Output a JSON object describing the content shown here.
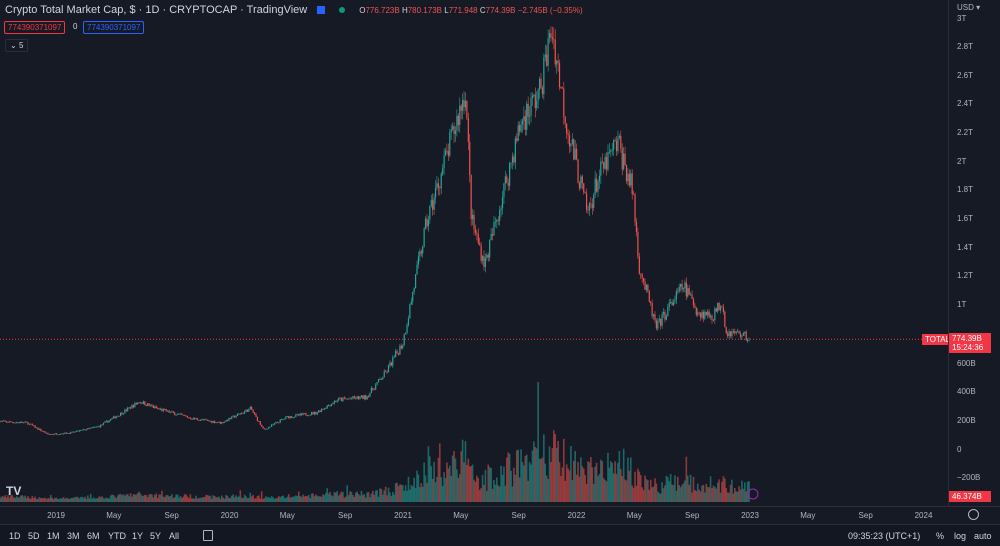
{
  "header": {
    "title": "Crypto Total Market Cap, $ · 1D · CRYPTOCAP · TradingView",
    "open_label": "O",
    "open": "776.723B",
    "high_label": "H",
    "high": "780.173B",
    "low_label": "L",
    "low": "771.948",
    "close_label": "C",
    "close": "774.39B",
    "change": "−2.745B (−0.35%)",
    "sell_value": "774390371097",
    "spread": "0",
    "buy_value": "774390371097",
    "indicators_toggle": "5"
  },
  "price_axis": {
    "currency": "USD",
    "ticks": [
      "3T",
      "2.8T",
      "2.6T",
      "2.4T",
      "2.2T",
      "2T",
      "1.8T",
      "1.6T",
      "1.4T",
      "1.2T",
      "1T",
      "600B",
      "400B",
      "200B",
      "0",
      "−200B"
    ],
    "last_price": "774.39B",
    "countdown": "15:24:36",
    "series_tag": "TOTAL",
    "volume_tag": "46.374B"
  },
  "time_axis": {
    "ticks": [
      "2019",
      "May",
      "Sep",
      "2020",
      "May",
      "Sep",
      "2021",
      "May",
      "Sep",
      "2022",
      "May",
      "Sep",
      "2023",
      "May",
      "Sep",
      "2024"
    ]
  },
  "bottom_bar": {
    "ranges": [
      "1D",
      "5D",
      "1M",
      "3M",
      "6M",
      "YTD",
      "1Y",
      "5Y",
      "All"
    ],
    "clock": "09:35:23 (UTC+1)",
    "percent": "%",
    "log": "log",
    "auto": "auto"
  },
  "colors": {
    "up": "#26a69a",
    "down": "#ef5350",
    "background": "#161a25",
    "accent": "#2962ff"
  },
  "chart_data": {
    "type": "candlestick",
    "interval": "1D",
    "y_unit": "USD",
    "ylim": [
      -200000000000.0,
      3000000000000.0
    ],
    "grid": false,
    "close_points": [
      [
        "2018-09-01",
        200
      ],
      [
        "2018-11-01",
        190
      ],
      [
        "2018-12-15",
        110
      ],
      [
        "2019-02-01",
        120
      ],
      [
        "2019-04-01",
        165
      ],
      [
        "2019-05-15",
        250
      ],
      [
        "2019-06-26",
        340
      ],
      [
        "2019-08-01",
        290
      ],
      [
        "2019-10-15",
        220
      ],
      [
        "2019-12-15",
        190
      ],
      [
        "2020-02-15",
        290
      ],
      [
        "2020-03-13",
        140
      ],
      [
        "2020-05-01",
        230
      ],
      [
        "2020-07-01",
        260
      ],
      [
        "2020-08-15",
        350
      ],
      [
        "2020-10-15",
        370
      ],
      [
        "2020-11-25",
        540
      ],
      [
        "2020-12-31",
        750
      ],
      [
        "2021-01-15",
        1000
      ],
      [
        "2021-02-20",
        1600
      ],
      [
        "2021-04-15",
        2200
      ],
      [
        "2021-05-12",
        2520
      ],
      [
        "2021-05-25",
        1600
      ],
      [
        "2021-06-22",
        1300
      ],
      [
        "2021-08-15",
        2000
      ],
      [
        "2021-09-07",
        2300
      ],
      [
        "2021-10-15",
        2500
      ],
      [
        "2021-11-10",
        2950
      ],
      [
        "2021-12-10",
        2300
      ],
      [
        "2022-01-24",
        1650
      ],
      [
        "2022-02-15",
        1900
      ],
      [
        "2022-03-29",
        2150
      ],
      [
        "2022-04-30",
        1800
      ],
      [
        "2022-05-12",
        1300
      ],
      [
        "2022-06-18",
        850
      ],
      [
        "2022-07-15",
        1000
      ],
      [
        "2022-08-14",
        1150
      ],
      [
        "2022-09-15",
        960
      ],
      [
        "2022-10-15",
        940
      ],
      [
        "2022-11-05",
        1050
      ],
      [
        "2022-11-10",
        830
      ],
      [
        "2022-12-15",
        810
      ],
      [
        "2023-01-01",
        774
      ]
    ]
  }
}
